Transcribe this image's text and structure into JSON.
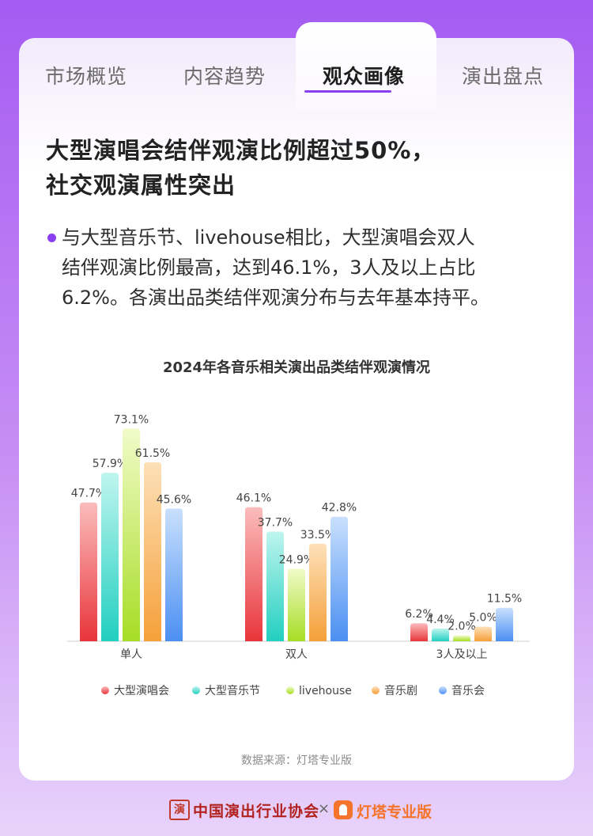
{
  "tabs": [
    {
      "label": "市场概览",
      "active": false
    },
    {
      "label": "内容趋势",
      "active": false
    },
    {
      "label": "观众画像",
      "active": true
    },
    {
      "label": "演出盘点",
      "active": false
    }
  ],
  "headline": {
    "line1": "大型演唱会结伴观演比例超过50%，",
    "line2": "社交观演属性突出"
  },
  "body": {
    "line1": "与大型音乐节、livehouse相比，大型演唱会双人",
    "line2": "结伴观演比例最高，达到46.1%，3人及以上占比",
    "line3": "6.2%。各演出品类结伴观演分布与去年基本持平。"
  },
  "chart_data": {
    "type": "bar",
    "title": "2024年各音乐相关演出品类结伴观演情况",
    "categories": [
      "单人",
      "双人",
      "3人及以上"
    ],
    "series": [
      {
        "name": "大型演唱会",
        "values": [
          47.7,
          46.1,
          6.2
        ],
        "color_top": "#fbbcbc",
        "color_bottom": "#e8353b"
      },
      {
        "name": "大型音乐节",
        "values": [
          57.9,
          37.7,
          4.4
        ],
        "color_top": "#bff5ef",
        "color_bottom": "#22cfc0"
      },
      {
        "name": "livehouse",
        "values": [
          73.1,
          24.9,
          2.0
        ],
        "color_top": "#f1fbc9",
        "color_bottom": "#a6dd24"
      },
      {
        "name": "音乐剧",
        "values": [
          61.5,
          33.5,
          5.0
        ],
        "color_top": "#fde0b8",
        "color_bottom": "#f5a039"
      },
      {
        "name": "音乐会",
        "values": [
          45.6,
          42.8,
          11.5
        ],
        "color_top": "#c9e0fd",
        "color_bottom": "#4b8ff2"
      }
    ],
    "ylim": [
      0,
      80
    ],
    "value_suffix": "%",
    "legend_position": "bottom"
  },
  "source": "数据来源：灯塔专业版",
  "footer": {
    "seal_char": "演",
    "association": "中国演出行业协会",
    "times": "×",
    "partner": "灯塔专业版"
  }
}
